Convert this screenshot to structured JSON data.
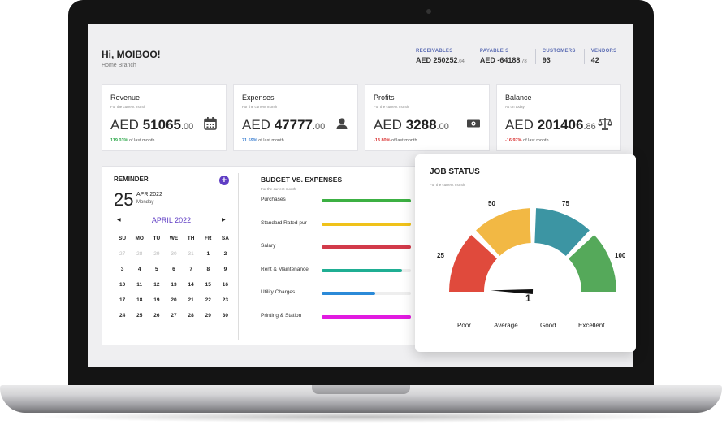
{
  "header": {
    "greeting": "Hi, MOIBOO!",
    "branch": "Home Branch"
  },
  "kpis": [
    {
      "label": "RECEIVABLES",
      "value": "AED 250252",
      "decimals": ".04"
    },
    {
      "label": "PAYABLE S",
      "value": "AED -64188",
      "decimals": ".78"
    },
    {
      "label": "CUSTOMERS",
      "value": "93",
      "decimals": ""
    },
    {
      "label": "VENDORS",
      "value": "42",
      "decimals": ""
    }
  ],
  "summary": [
    {
      "title": "Revenue",
      "sub": "For the current month",
      "currency": "AED",
      "value": "51065",
      "decimals": ".00",
      "change": "119.03%",
      "change_text": "of last month",
      "change_color": "#2da84a",
      "icon": "calendar-icon"
    },
    {
      "title": "Expenses",
      "sub": "For the current month",
      "currency": "AED",
      "value": "47777",
      "decimals": ".00",
      "change": "71.59%",
      "change_text": "of last month",
      "change_color": "#3b7fd1",
      "icon": "person-icon"
    },
    {
      "title": "Profits",
      "sub": "For the current month",
      "currency": "AED",
      "value": "3288",
      "decimals": ".00",
      "change": "-13.80%",
      "change_text": "of last month",
      "change_color": "#d93030",
      "icon": "money-icon"
    },
    {
      "title": "Balance",
      "sub": "As on today",
      "currency": "AED",
      "value": "201406",
      "decimals": ".86",
      "change": "-16.97%",
      "change_text": "of last month",
      "change_color": "#d93030",
      "icon": "scale-icon"
    }
  ],
  "reminder": {
    "title": "REMINDER",
    "day": "25",
    "month_year": "APR 2022",
    "weekday": "Monday",
    "prev": "◀",
    "next": "▶",
    "calendar_month": "APRIL 2022",
    "weekdays": [
      "SU",
      "MO",
      "TU",
      "WE",
      "TH",
      "FR",
      "SA"
    ],
    "days": [
      {
        "d": "27",
        "dim": true
      },
      {
        "d": "28",
        "dim": true
      },
      {
        "d": "29",
        "dim": true
      },
      {
        "d": "30",
        "dim": true
      },
      {
        "d": "31",
        "dim": true
      },
      {
        "d": "1",
        "dim": false
      },
      {
        "d": "2",
        "dim": false
      },
      {
        "d": "3",
        "dim": false
      },
      {
        "d": "4",
        "dim": false
      },
      {
        "d": "5",
        "dim": false
      },
      {
        "d": "6",
        "dim": false
      },
      {
        "d": "7",
        "dim": false
      },
      {
        "d": "8",
        "dim": false
      },
      {
        "d": "9",
        "dim": false
      },
      {
        "d": "10",
        "dim": false
      },
      {
        "d": "11",
        "dim": false
      },
      {
        "d": "12",
        "dim": false
      },
      {
        "d": "13",
        "dim": false
      },
      {
        "d": "14",
        "dim": false
      },
      {
        "d": "15",
        "dim": false
      },
      {
        "d": "16",
        "dim": false
      },
      {
        "d": "17",
        "dim": false
      },
      {
        "d": "18",
        "dim": false
      },
      {
        "d": "19",
        "dim": false
      },
      {
        "d": "20",
        "dim": false
      },
      {
        "d": "21",
        "dim": false
      },
      {
        "d": "22",
        "dim": false
      },
      {
        "d": "23",
        "dim": false
      },
      {
        "d": "24",
        "dim": false
      },
      {
        "d": "25",
        "dim": false
      },
      {
        "d": "26",
        "dim": false
      },
      {
        "d": "27",
        "dim": false
      },
      {
        "d": "28",
        "dim": false
      },
      {
        "d": "29",
        "dim": false
      },
      {
        "d": "30",
        "dim": false
      }
    ]
  },
  "budget": {
    "title": "BUDGET VS. EXPENSES",
    "sub": "For the current month",
    "rows": [
      {
        "label": "Purchases",
        "fill": 1.0,
        "color": "#3cb043"
      },
      {
        "label": "Standard Rated pur",
        "fill": 1.0,
        "color": "#f0c21a"
      },
      {
        "label": "Salary",
        "fill": 1.0,
        "color": "#d23a4a"
      },
      {
        "label": "Rent & Maintenance",
        "fill": 0.9,
        "color": "#1fae93"
      },
      {
        "label": "Utility Charges",
        "fill": 0.6,
        "color": "#2b8ad8"
      },
      {
        "label": "Printing & Station",
        "fill": 1.0,
        "color": "#e11be0"
      }
    ]
  },
  "job_status": {
    "title": "JOB STATUS",
    "sub": "For the current month",
    "ticks": [
      "25",
      "50",
      "75",
      "100"
    ],
    "value": "1",
    "value_num": 1,
    "max": 100,
    "segments": [
      {
        "label": "Poor",
        "color": "#e04a3c"
      },
      {
        "label": "Average",
        "color": "#f2b844"
      },
      {
        "label": "Good",
        "color": "#3c95a3"
      },
      {
        "label": "Excellent",
        "color": "#55a95a"
      }
    ]
  }
}
